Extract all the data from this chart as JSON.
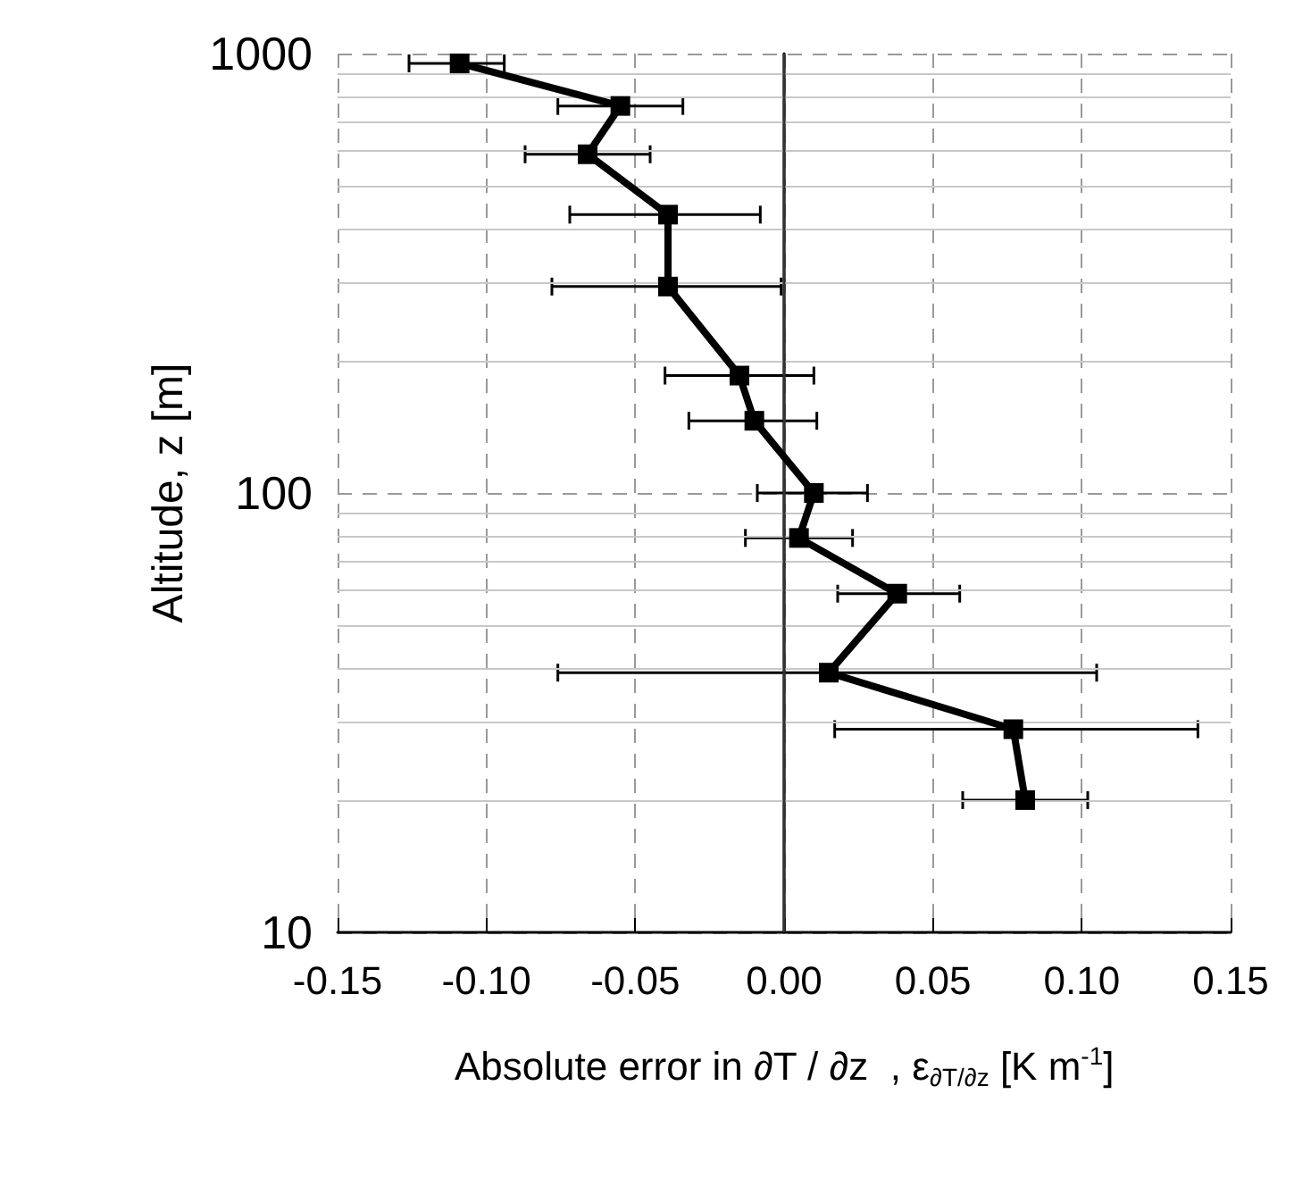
{
  "chart_data": {
    "type": "line",
    "xlabel": "Absolute error in ∂T / ∂z  , ε$_{∂T/∂z}$ [K m$^{-1}$]",
    "ylabel": "Altitude, z [m]",
    "series": [
      {
        "color": "#000000",
        "x": [
          -0.109,
          -0.055,
          -0.066,
          -0.039,
          -0.039,
          -0.015,
          -0.01,
          0.01,
          0.005,
          0.038,
          0.015,
          0.077,
          0.081
        ],
        "values": [
          950,
          760,
          590,
          430,
          295,
          185,
          146,
          100,
          79,
          59,
          39,
          29,
          20
        ],
        "xerrors": [
          [
            -0.126,
            -0.094
          ],
          [
            -0.076,
            -0.034
          ],
          [
            -0.087,
            -0.045
          ],
          [
            -0.072,
            -0.008
          ],
          [
            -0.078,
            -0.001
          ],
          [
            -0.04,
            0.01
          ],
          [
            -0.032,
            0.011
          ],
          [
            -0.009,
            0.028
          ],
          [
            -0.013,
            0.023
          ],
          [
            0.018,
            0.059
          ],
          [
            -0.076,
            0.105
          ],
          [
            0.017,
            0.139
          ],
          [
            0.06,
            0.102
          ]
        ]
      }
    ],
    "marker": "square",
    "line_style": "solid",
    "log": "y",
    "grid": true,
    "xlim": [
      -0.15,
      0.15
    ],
    "xticks": [
      {
        "value": -0.15,
        "label": "-0.15"
      },
      {
        "value": -0.1,
        "label": "-0.10"
      },
      {
        "value": -0.05,
        "label": "-0.05"
      },
      {
        "value": 0,
        "label": "0.00"
      },
      {
        "value": 0.05,
        "label": "0.05"
      },
      {
        "value": 0.1,
        "label": "0.10"
      },
      {
        "value": 0.15,
        "label": "0.15"
      }
    ],
    "ylim": [
      10,
      1000
    ],
    "yticks": [
      10,
      100,
      1000
    ]
  }
}
